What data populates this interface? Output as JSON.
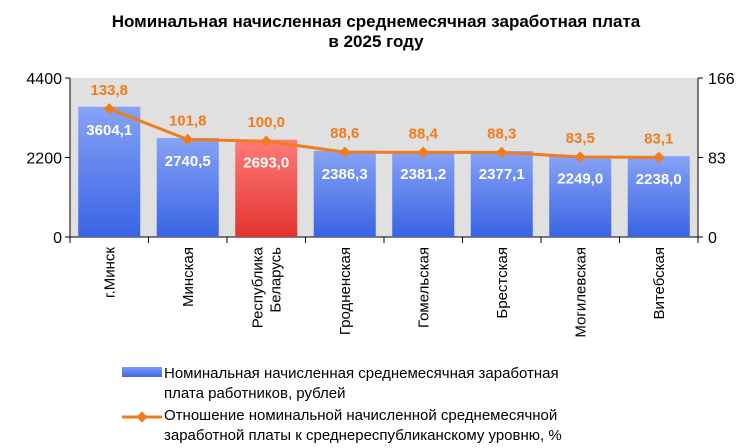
{
  "title": {
    "line1": "Номинальная начисленная среднемесячная заработная плата",
    "line2": "в 2025 году"
  },
  "colors": {
    "bar": "#4f78ea",
    "bar_highlight": "#ef4a47",
    "line": "#f07c1d",
    "plot_bg": "#e0e0e0"
  },
  "chart_data": {
    "type": "bar",
    "categories": [
      "г.Минск",
      "Минская",
      "Республика Беларусь",
      "Гродненская",
      "Гомельская",
      "Брестская",
      "Могилевская",
      "Витебская"
    ],
    "category_lines": [
      [
        "г.Минск"
      ],
      [
        "Минская"
      ],
      [
        "Республика",
        "Беларусь"
      ],
      [
        "Гродненская"
      ],
      [
        "Гомельская"
      ],
      [
        "Брестская"
      ],
      [
        "Могилевская"
      ],
      [
        "Витебская"
      ]
    ],
    "series": [
      {
        "name": "Номинальная начисленная среднемесячная заработная плата работников, рублей",
        "type": "bar",
        "axis": "left",
        "values": [
          3604.1,
          2740.5,
          2693.0,
          2386.3,
          2381.2,
          2377.1,
          2249.0,
          2238.0
        ],
        "labels": [
          "3604,1",
          "2740,5",
          "2693,0",
          "2386,3",
          "2381,2",
          "2377,1",
          "2249,0",
          "2238,0"
        ],
        "highlight_index": 2
      },
      {
        "name": "Отношение номинальной начисленной среднемесячной заработной платы к среднереспубликанскому уровню, %",
        "type": "line",
        "axis": "right",
        "values": [
          133.8,
          101.8,
          100.0,
          88.6,
          88.4,
          88.3,
          83.5,
          83.1
        ],
        "labels": [
          "133,8",
          "101,8",
          "100,0",
          "88,6",
          "88,4",
          "88,3",
          "83,5",
          "83,1"
        ]
      }
    ],
    "y_left": {
      "min": 0,
      "max": 4400,
      "ticks": [
        0,
        2200,
        4400
      ],
      "tick_labels": [
        "0",
        "2200",
        "4400"
      ]
    },
    "y_right": {
      "min": 0,
      "max": 166,
      "ticks": [
        0,
        83,
        166
      ],
      "tick_labels": [
        "0",
        "83",
        "166"
      ]
    },
    "grid": false,
    "legend_position": "bottom-left"
  },
  "legend": {
    "bar_line1": "Номинальная начисленная среднемесячная заработная",
    "bar_line2": "плата работников, рублей",
    "line_line1": "Отношение номинальной начисленной среднемесячной",
    "line_line2": "заработной платы к среднереспубликанскому уровню, %"
  }
}
